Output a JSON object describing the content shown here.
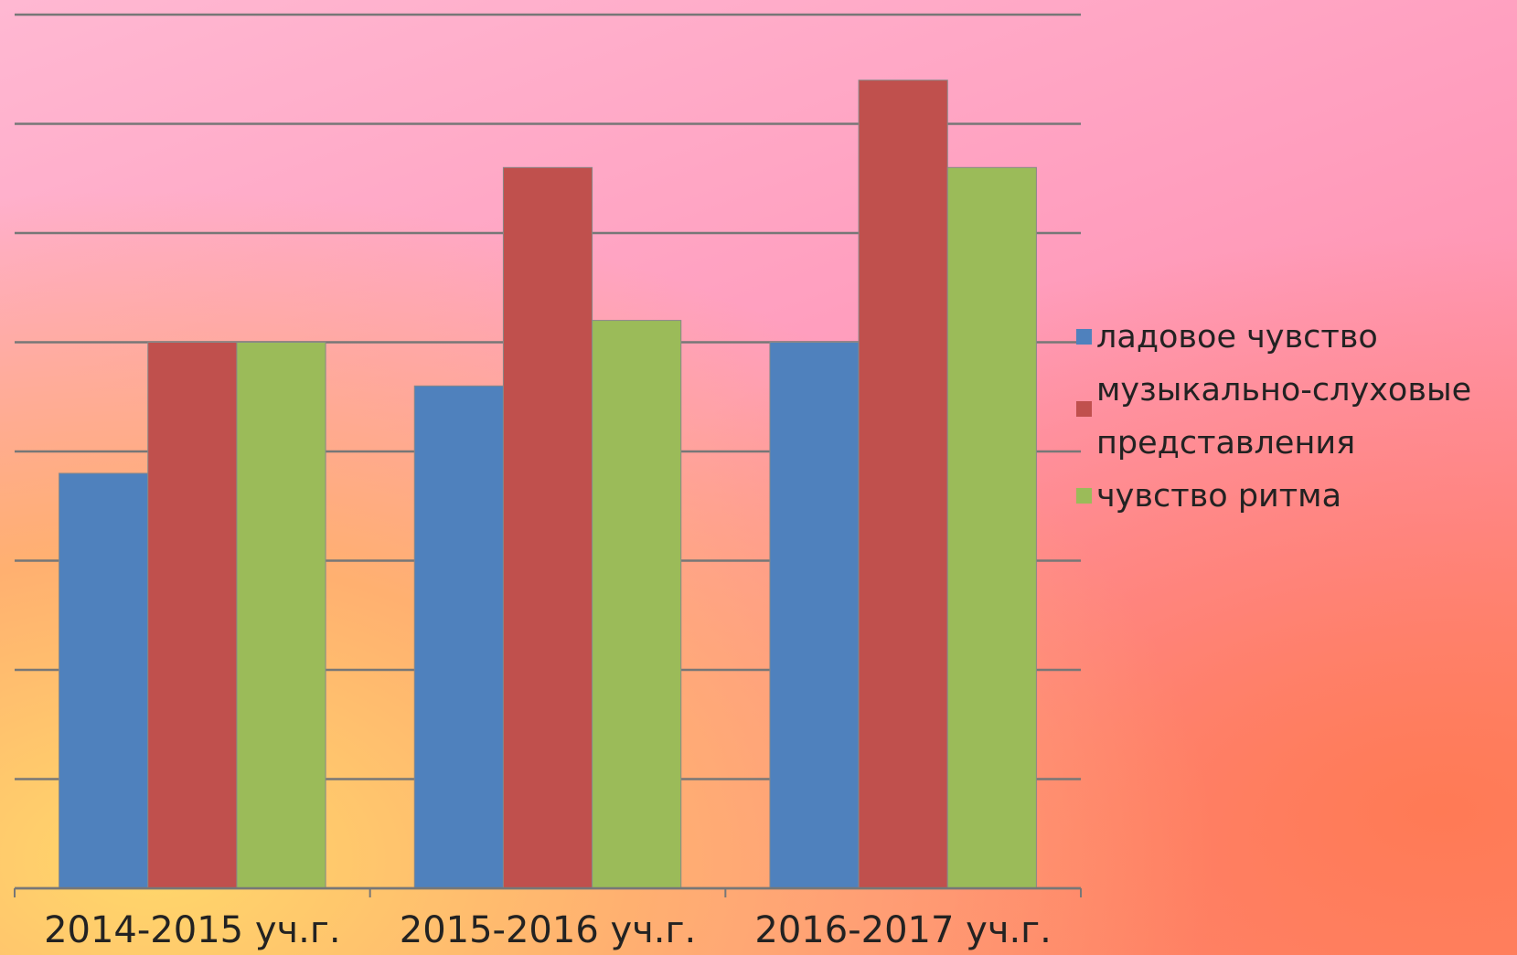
{
  "chart_data": {
    "type": "bar",
    "categories": [
      "2014-2015 уч.г.",
      "2015-2016 уч.г.",
      "2016-2017 уч.г."
    ],
    "series": [
      {
        "name": "ладовое чувство",
        "color": "#4f81bd",
        "values": [
          3.8,
          4.6,
          5.0
        ]
      },
      {
        "name": "музыкально-слуховые представления",
        "color": "#c0504d",
        "values": [
          5.0,
          6.6,
          7.4
        ]
      },
      {
        "name": "чувство ритма",
        "color": "#9bbb59",
        "values": [
          5.0,
          5.2,
          6.6
        ]
      }
    ],
    "ylim": [
      0,
      8
    ],
    "yticks": [
      0,
      1,
      2,
      3,
      4,
      5,
      6,
      7,
      8
    ],
    "grid": true,
    "legend": "right"
  }
}
